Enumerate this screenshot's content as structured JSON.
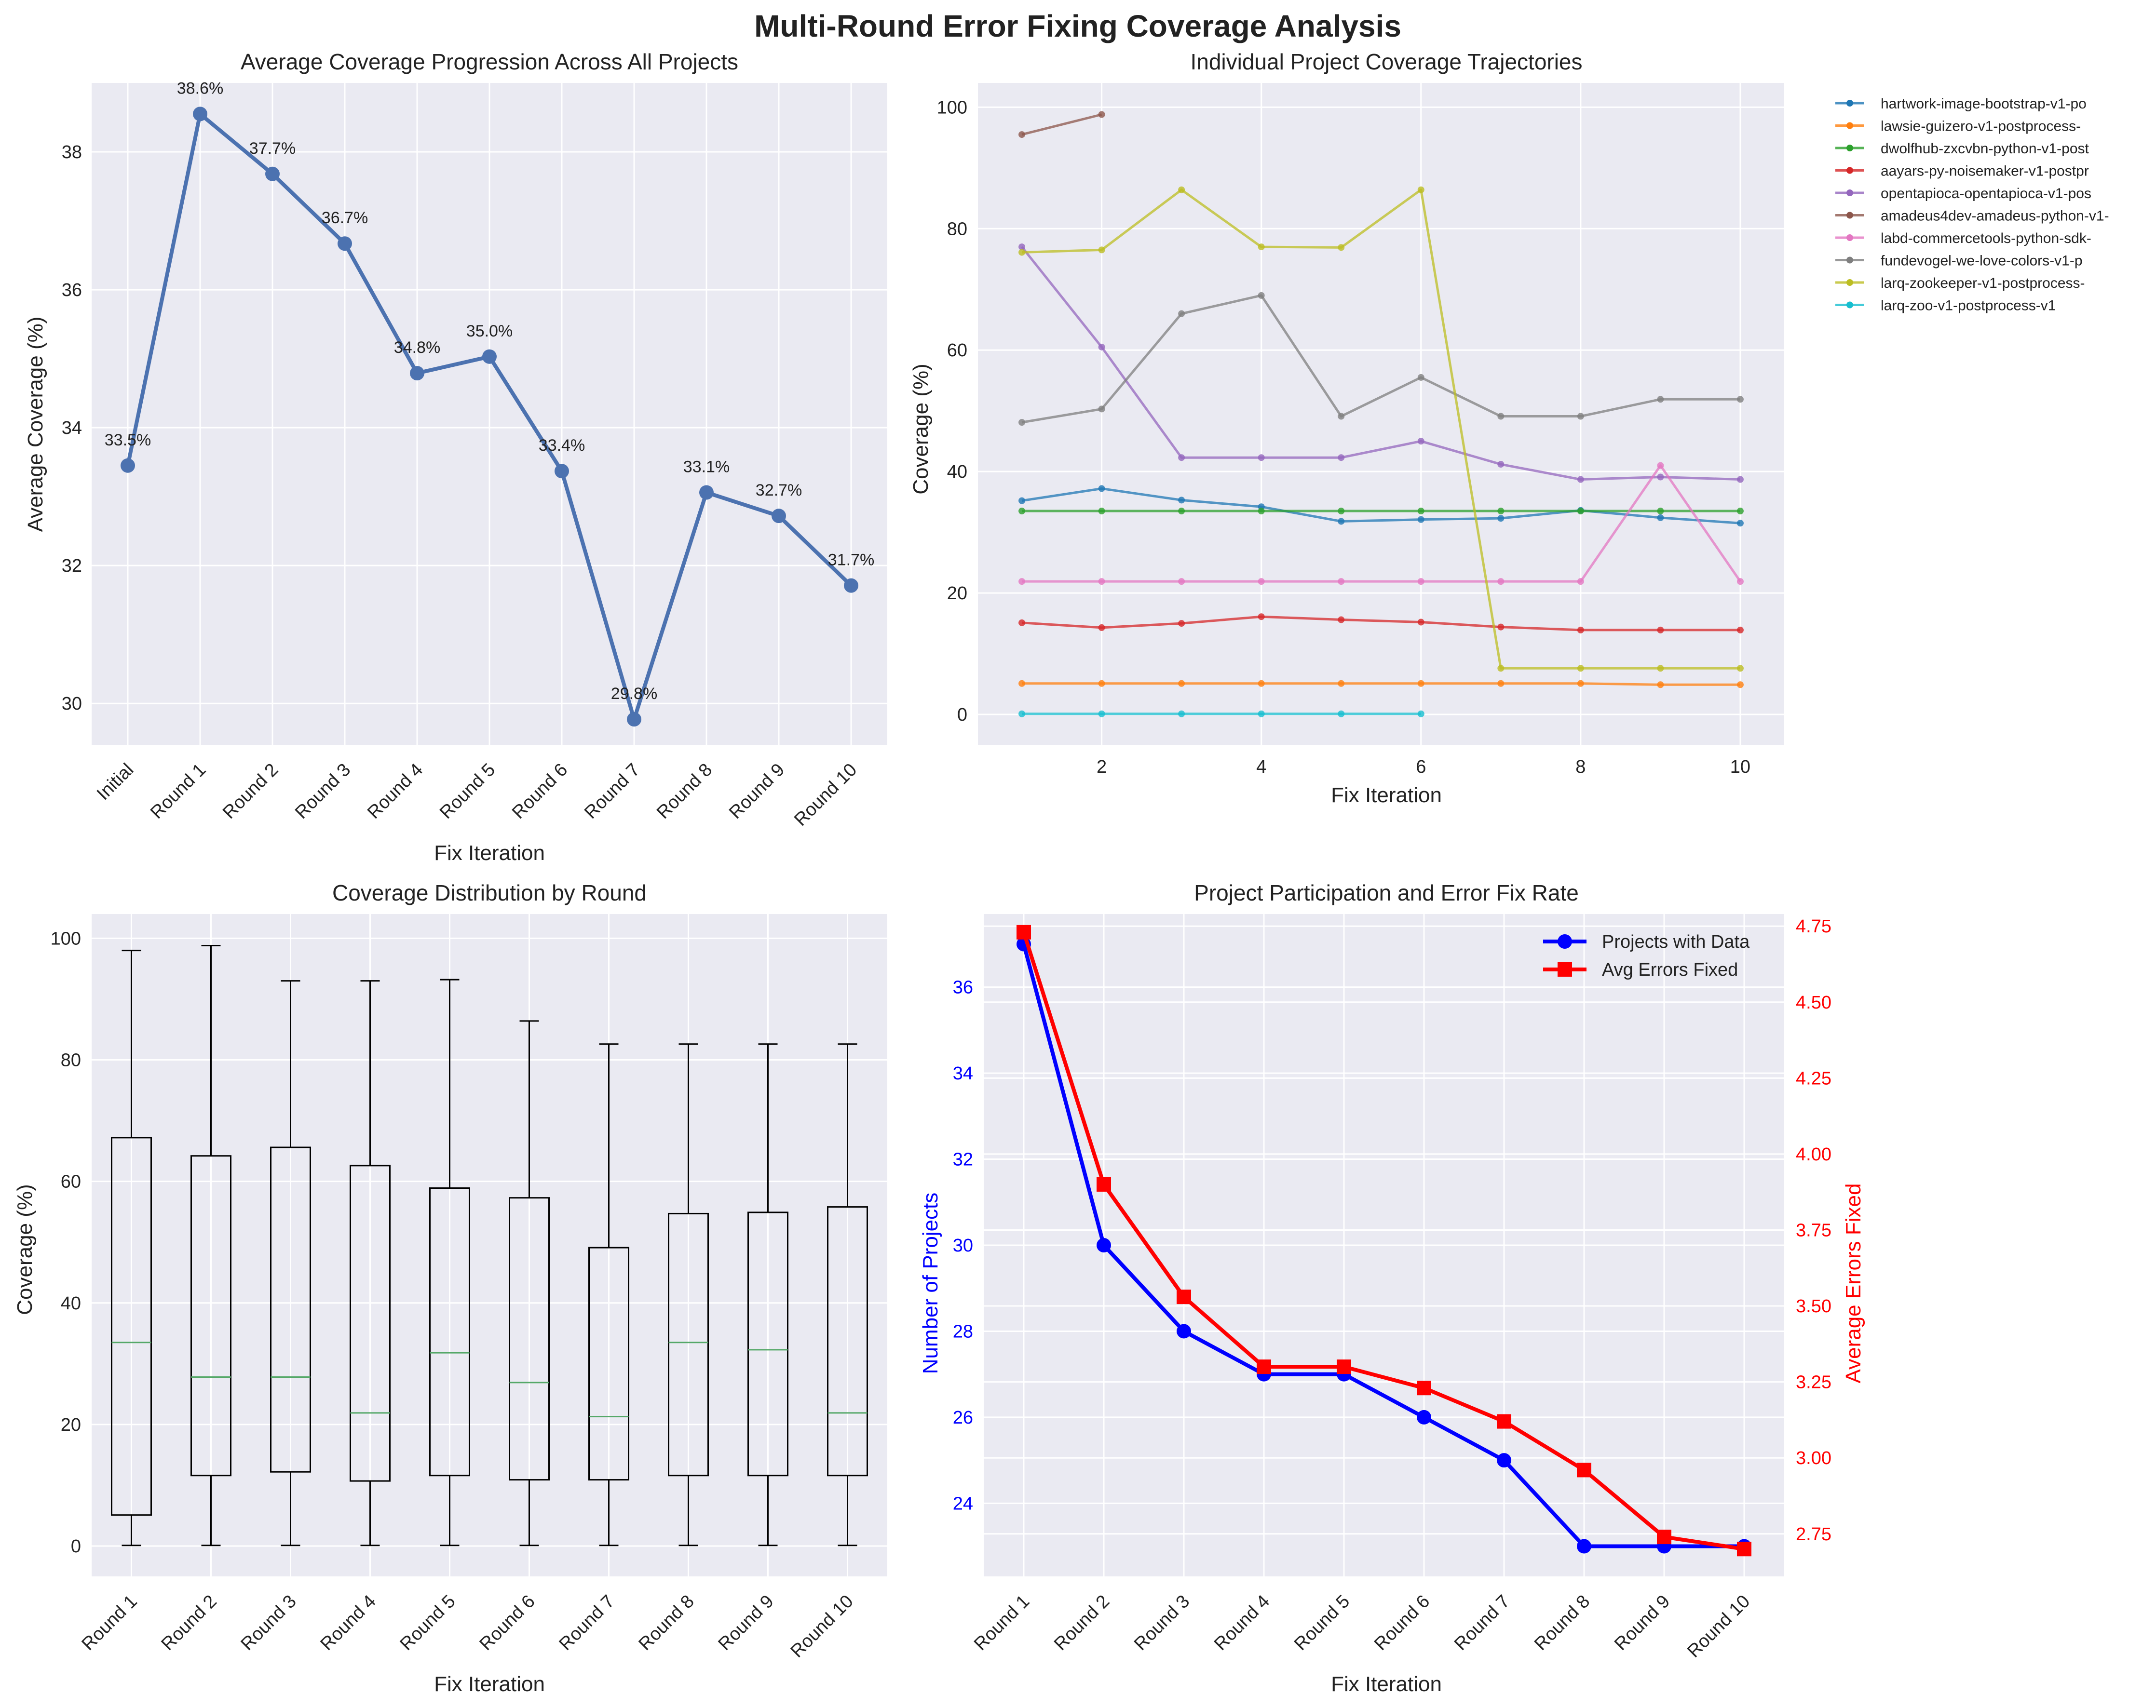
{
  "figure": {
    "title": "Multi-Round Error Fixing Coverage Analysis",
    "colors": {
      "background": "#eaeaf2",
      "grid": "#ffffff",
      "main_line": "#4c72b0",
      "blue": "#0000ff",
      "red": "#ff0000",
      "median": "#55a868"
    }
  },
  "chart_data": [
    {
      "id": "avg",
      "type": "line",
      "title": "Average Coverage Progression Across All Projects",
      "xlabel": "Fix Iteration",
      "ylabel": "Average Coverage (%)",
      "categories": [
        "Initial",
        "Round 1",
        "Round 2",
        "Round 3",
        "Round 4",
        "Round 5",
        "Round 6",
        "Round 7",
        "Round 8",
        "Round 9",
        "Round 10"
      ],
      "values": [
        33.45,
        38.55,
        37.68,
        36.67,
        34.79,
        35.03,
        33.37,
        29.77,
        33.06,
        32.72,
        31.71
      ],
      "data_labels": [
        "33.5%",
        "38.6%",
        "37.7%",
        "36.7%",
        "34.8%",
        "35.0%",
        "33.4%",
        "29.8%",
        "33.1%",
        "32.7%",
        "31.7%"
      ],
      "ylim": [
        29.4,
        39.0
      ],
      "yticks": [
        30,
        32,
        34,
        36,
        38
      ],
      "color": "#4c72b0"
    },
    {
      "id": "traj",
      "type": "line",
      "title": "Individual Project Coverage Trajectories",
      "xlabel": "Fix Iteration",
      "ylabel": "Coverage (%)",
      "xlim": [
        0.45,
        10.55
      ],
      "ylim": [
        -5,
        104
      ],
      "xticks": [
        2,
        4,
        6,
        8,
        10
      ],
      "yticks": [
        0,
        20,
        40,
        60,
        80,
        100
      ],
      "series": [
        {
          "name": "hartwork-image-bootstrap-v1-po",
          "color": "#1f77b4",
          "x": [
            1,
            2,
            3,
            4,
            5,
            6,
            7,
            8,
            9,
            10
          ],
          "values": [
            35.2,
            37.2,
            35.3,
            34.2,
            31.8,
            32.1,
            32.3,
            33.6,
            32.4,
            31.5
          ]
        },
        {
          "name": "lawsie-guizero-v1-postprocess-",
          "color": "#ff7f0e",
          "x": [
            1,
            2,
            3,
            4,
            5,
            6,
            7,
            8,
            9,
            10
          ],
          "values": [
            5.1,
            5.1,
            5.1,
            5.1,
            5.1,
            5.1,
            5.1,
            5.1,
            4.9,
            4.9
          ]
        },
        {
          "name": "dwolfhub-zxcvbn-python-v1-post",
          "color": "#2ca02c",
          "x": [
            1,
            2,
            3,
            4,
            5,
            6,
            7,
            8,
            9,
            10
          ],
          "values": [
            33.5,
            33.5,
            33.5,
            33.5,
            33.5,
            33.5,
            33.5,
            33.5,
            33.5,
            33.5
          ]
        },
        {
          "name": "aayars-py-noisemaker-v1-postpr",
          "color": "#d62728",
          "x": [
            1,
            2,
            3,
            4,
            5,
            6,
            7,
            8,
            9,
            10
          ],
          "values": [
            15.1,
            14.3,
            15.0,
            16.1,
            15.6,
            15.2,
            14.4,
            13.9,
            13.9,
            13.9
          ]
        },
        {
          "name": "opentapioca-opentapioca-v1-pos",
          "color": "#9467bd",
          "x": [
            1,
            2,
            3,
            4,
            5,
            6,
            7,
            8,
            9,
            10
          ],
          "values": [
            77.0,
            60.5,
            42.3,
            42.3,
            42.3,
            45.0,
            41.2,
            38.7,
            39.1,
            38.7
          ]
        },
        {
          "name": "amadeus4dev-amadeus-python-v1-",
          "color": "#8c564b",
          "x": [
            1,
            2
          ],
          "values": [
            95.5,
            98.8
          ]
        },
        {
          "name": "labd-commercetools-python-sdk-",
          "color": "#e377c2",
          "x": [
            1,
            2,
            3,
            4,
            5,
            6,
            7,
            8,
            9,
            10
          ],
          "values": [
            21.9,
            21.9,
            21.9,
            21.9,
            21.9,
            21.9,
            21.9,
            21.9,
            41.0,
            21.9
          ]
        },
        {
          "name": "fundevogel-we-love-colors-v1-p",
          "color": "#7f7f7f",
          "x": [
            1,
            2,
            3,
            4,
            5,
            6,
            7,
            8,
            9,
            10
          ],
          "values": [
            48.1,
            50.3,
            66.0,
            69.0,
            49.1,
            55.5,
            49.1,
            49.1,
            51.9,
            51.9
          ]
        },
        {
          "name": "larq-zookeeper-v1-postprocess-",
          "color": "#bcbd22",
          "x": [
            1,
            2,
            3,
            4,
            5,
            6,
            7,
            8,
            9,
            10
          ],
          "values": [
            76.1,
            76.5,
            86.4,
            77.0,
            76.9,
            86.4,
            7.6,
            7.6,
            7.6,
            7.6
          ]
        },
        {
          "name": "larq-zoo-v1-postprocess-v1",
          "color": "#17becf",
          "x": [
            1,
            2,
            3,
            4,
            5,
            6
          ],
          "values": [
            0.1,
            0.1,
            0.1,
            0.1,
            0.1,
            0.1
          ]
        }
      ]
    },
    {
      "id": "box",
      "type": "box",
      "title": "Coverage Distribution by Round",
      "xlabel": "Fix Iteration",
      "ylabel": "Coverage (%)",
      "categories": [
        "Round 1",
        "Round 2",
        "Round 3",
        "Round 4",
        "Round 5",
        "Round 6",
        "Round 7",
        "Round 8",
        "Round 9",
        "Round 10"
      ],
      "ylim": [
        -5,
        104
      ],
      "yticks": [
        0,
        20,
        40,
        60,
        80,
        100
      ],
      "boxes": [
        {
          "min": 0.1,
          "q1": 5.1,
          "median": 33.5,
          "q3": 67.2,
          "max": 98.0
        },
        {
          "min": 0.1,
          "q1": 11.6,
          "median": 27.8,
          "q3": 64.2,
          "max": 98.8
        },
        {
          "min": 0.1,
          "q1": 12.2,
          "median": 27.8,
          "q3": 65.6,
          "max": 93.0
        },
        {
          "min": 0.1,
          "q1": 10.7,
          "median": 21.9,
          "q3": 62.6,
          "max": 93.0
        },
        {
          "min": 0.1,
          "q1": 11.6,
          "median": 31.8,
          "q3": 58.9,
          "max": 93.2
        },
        {
          "min": 0.1,
          "q1": 10.9,
          "median": 26.9,
          "q3": 57.3,
          "max": 86.4
        },
        {
          "min": 0.1,
          "q1": 10.9,
          "median": 21.3,
          "q3": 49.1,
          "max": 82.6
        },
        {
          "min": 0.1,
          "q1": 11.6,
          "median": 33.5,
          "q3": 54.7,
          "max": 82.6
        },
        {
          "min": 0.1,
          "q1": 11.6,
          "median": 32.3,
          "q3": 54.9,
          "max": 82.6
        },
        {
          "min": 0.1,
          "q1": 11.6,
          "median": 21.9,
          "q3": 55.8,
          "max": 82.6
        }
      ]
    },
    {
      "id": "dual",
      "type": "line",
      "title": "Project Participation and Error Fix Rate",
      "xlabel": "Fix Iteration",
      "ylabel": "Number of Projects",
      "y2label": "Average Errors Fixed",
      "categories": [
        "Round 1",
        "Round 2",
        "Round 3",
        "Round 4",
        "Round 5",
        "Round 6",
        "Round 7",
        "Round 8",
        "Round 9",
        "Round 10"
      ],
      "ylim": [
        22.3,
        37.7
      ],
      "y2lim": [
        2.61,
        4.79
      ],
      "yticks": [
        24,
        26,
        28,
        30,
        32,
        34,
        36
      ],
      "y2ticks": [
        "2.75",
        "3.00",
        "3.25",
        "3.50",
        "3.75",
        "4.00",
        "4.25",
        "4.50",
        "4.75"
      ],
      "series": [
        {
          "name": "Projects with Data",
          "axis": "left",
          "color": "#0000ff",
          "marker": "circle",
          "values": [
            37,
            30,
            28,
            27,
            27,
            26,
            25,
            23,
            23,
            23
          ]
        },
        {
          "name": "Avg Errors Fixed",
          "axis": "right",
          "color": "#ff0000",
          "marker": "square",
          "values": [
            4.73,
            3.9,
            3.53,
            3.3,
            3.3,
            3.23,
            3.12,
            2.96,
            2.74,
            2.7
          ]
        }
      ]
    }
  ]
}
